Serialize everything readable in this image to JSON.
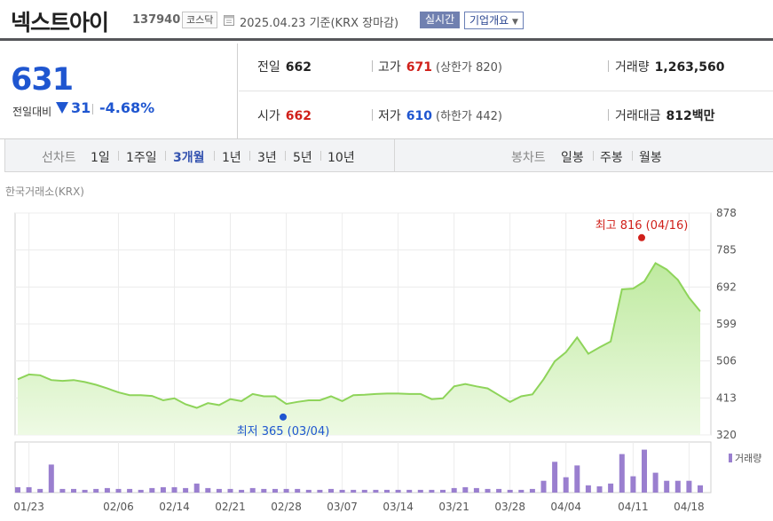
{
  "header": {
    "name": "넥스트아이",
    "code": "137940",
    "market": "코스닥",
    "date": "2025.04.23  기준(KRX 장마감)",
    "realtime": "실시간",
    "corp_info": "기업개요"
  },
  "price": {
    "current": "631",
    "change_label": "전일대비",
    "change": "31",
    "change_pct": "-4.68%"
  },
  "stats": {
    "prev_label": "전일",
    "prev": "662",
    "high_label": "고가",
    "high": "671",
    "upper_limit": "(상한가 820)",
    "volume_label": "거래량",
    "volume": "1,263,560",
    "open_label": "시가",
    "open": "662",
    "low_label": "저가",
    "low": "610",
    "lower_limit": "(하한가 442)",
    "amount_label": "거래대금",
    "amount": "812",
    "amount_unit": "백만"
  },
  "line_tabs": {
    "label": "선차트",
    "items": [
      "1일",
      "1주일",
      "3개월",
      "1년",
      "3년",
      "5년",
      "10년"
    ],
    "active": "3개월"
  },
  "candle_tabs": {
    "label": "봉차트",
    "items": [
      "일봉",
      "주봉",
      "월봉"
    ]
  },
  "source_label": "한국거래소(KRX)",
  "colors": {
    "accent_blue": "#1f56d0",
    "up_red": "#d0201a",
    "line_green": "#8ed45a",
    "volume_purple": "#9a7fcf"
  },
  "chart_data": {
    "type": "area",
    "ylim": [
      320,
      878
    ],
    "y_ticks": [
      "878",
      "785",
      "692",
      "599",
      "506",
      "413",
      "320"
    ],
    "x_tick_labels": [
      "01/23",
      "02/06",
      "02/14",
      "02/21",
      "02/28",
      "03/07",
      "03/14",
      "03/21",
      "03/28",
      "04/04",
      "04/11",
      "04/18"
    ],
    "high_annotation": "최고 816 (04/16)",
    "high_value": 816,
    "low_annotation": "최저 365 (03/04)",
    "low_value": 365,
    "volume_legend": "거래량",
    "series": [
      {
        "values": [
          460,
          472,
          470,
          458,
          456,
          458,
          453,
          446,
          437,
          427,
          420,
          420,
          418,
          407,
          412,
          397,
          388,
          400,
          395,
          410,
          405,
          423,
          417,
          417,
          398,
          403,
          407,
          407,
          417,
          405,
          420,
          421,
          423,
          424,
          424,
          423,
          423,
          410,
          412,
          442,
          448,
          442,
          437,
          420,
          403,
          417,
          422,
          460,
          505,
          528,
          565,
          524,
          540,
          555,
          686,
          688,
          706,
          752,
          736,
          710,
          665,
          631
        ]
      }
    ],
    "volume_relative": [
      0.12,
      0.12,
      0.08,
      0.62,
      0.08,
      0.08,
      0.06,
      0.08,
      0.1,
      0.08,
      0.08,
      0.06,
      0.1,
      0.12,
      0.12,
      0.1,
      0.2,
      0.1,
      0.08,
      0.08,
      0.06,
      0.1,
      0.08,
      0.08,
      0.08,
      0.08,
      0.06,
      0.06,
      0.08,
      0.06,
      0.06,
      0.06,
      0.06,
      0.06,
      0.06,
      0.06,
      0.06,
      0.06,
      0.06,
      0.1,
      0.12,
      0.1,
      0.08,
      0.08,
      0.06,
      0.06,
      0.08,
      0.26,
      0.68,
      0.34,
      0.6,
      0.16,
      0.14,
      0.2,
      0.85,
      0.36,
      0.95,
      0.44,
      0.26,
      0.26,
      0.26,
      0.16
    ]
  }
}
